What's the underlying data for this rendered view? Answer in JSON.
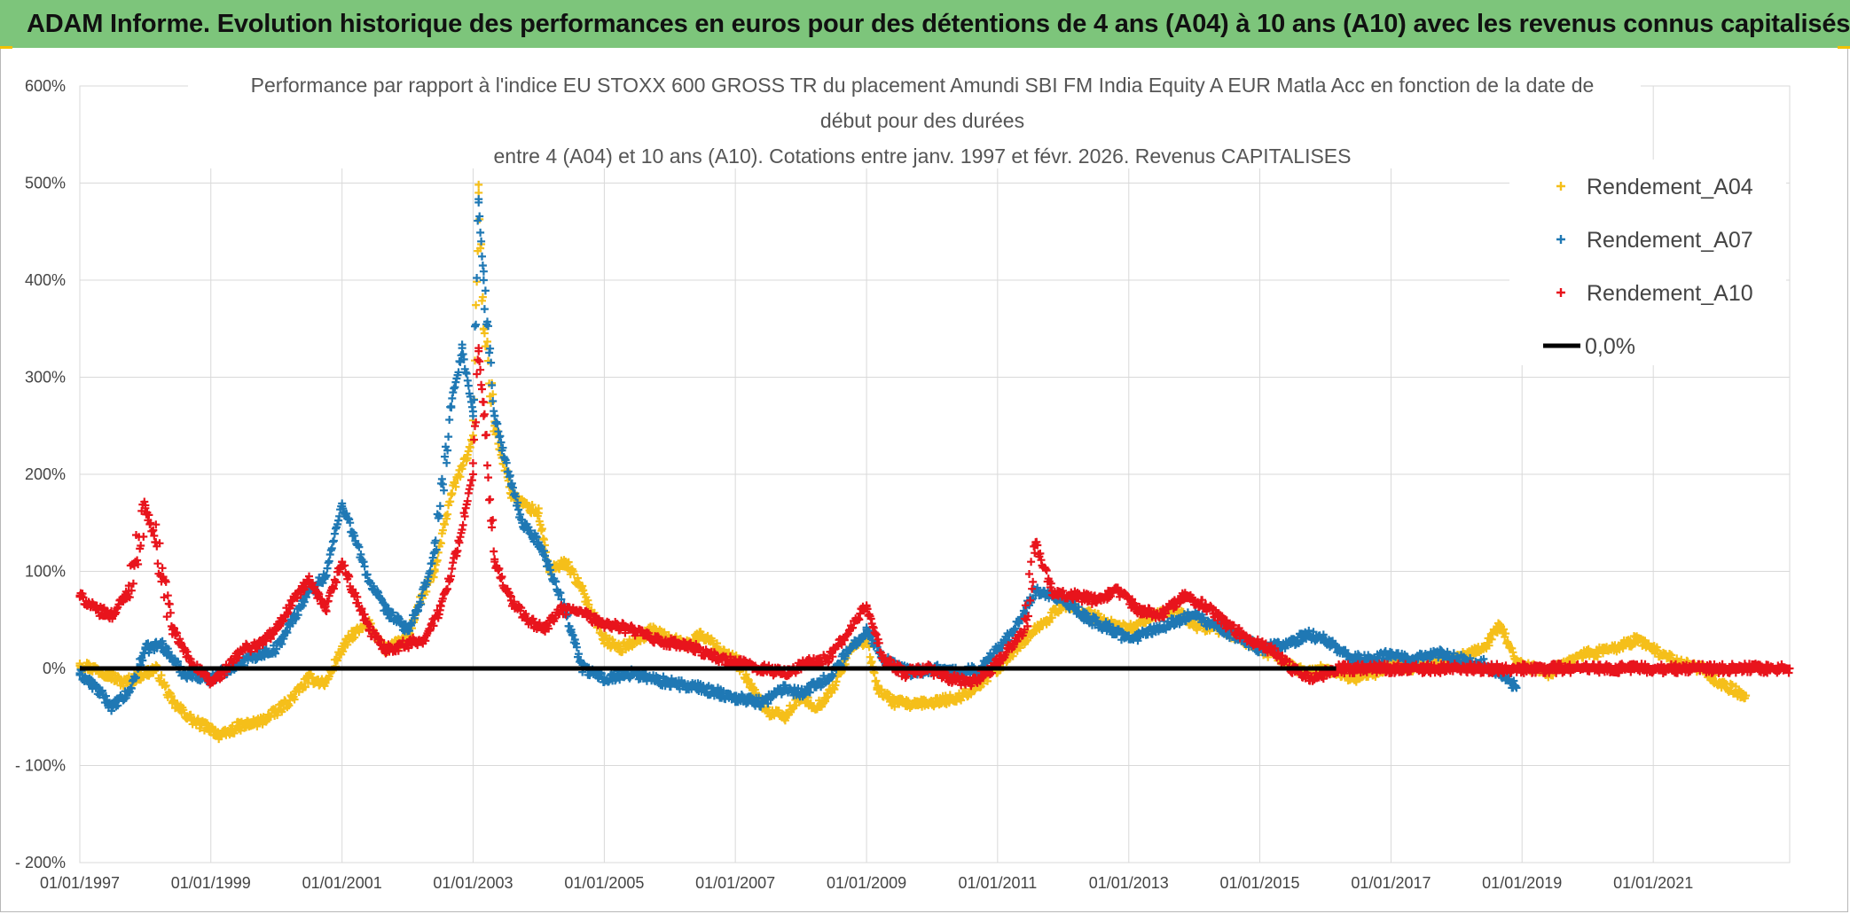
{
  "banner": {
    "text": "ADAM Informe. Evolution historique des performances en euros pour des détentions de 4 ans (A04) à 10 ans (A10) avec les revenus connus capitalisés"
  },
  "colors": {
    "banner_bg": "#7dc57b",
    "A04": "#f5bf1a",
    "A07": "#1f78b4",
    "A10": "#e8141c",
    "zero_line": "#000000",
    "grid": "#d9d9d9"
  },
  "chart_data": {
    "type": "scatter",
    "title_lines": [
      "Performance  par rapport à l'indice EU STOXX 600 GROSS TR  du placement Amundi SBI FM India Equity A EUR Matla Acc en fonction de la date de",
      "début pour des durées",
      "entre 4 (A04) et 10 ans (A10). Cotations entre janv. 1997 et févr. 2026. Revenus CAPITALISES"
    ],
    "xlabel": "",
    "ylabel": "",
    "x_ticks": [
      "01/01/1997",
      "01/01/1999",
      "01/01/2001",
      "01/01/2003",
      "01/01/2005",
      "01/01/2007",
      "01/01/2009",
      "01/01/2011",
      "01/01/2013",
      "01/01/2015",
      "01/01/2017",
      "01/01/2019",
      "01/01/2021"
    ],
    "x_range": [
      "1997-01-01",
      "2023-01-31"
    ],
    "y_ticks": [
      "600%",
      "500%",
      "400%",
      "300%",
      "200%",
      "100%",
      "0%",
      "- 100%",
      "- 200%"
    ],
    "y_range": [
      -200,
      600
    ],
    "grid": true,
    "legend_position": "top-right",
    "series": [
      {
        "name": "Rendement_A04",
        "marker": "plus",
        "points": [
          [
            "1997-01-01",
            5
          ],
          [
            "1997-06-01",
            -5
          ],
          [
            "1997-09-01",
            -15
          ],
          [
            "1998-01-01",
            -5
          ],
          [
            "1998-03-01",
            0
          ],
          [
            "1998-06-01",
            -35
          ],
          [
            "1998-10-01",
            -55
          ],
          [
            "1999-01-01",
            -62
          ],
          [
            "1999-03-01",
            -70
          ],
          [
            "1999-06-01",
            -60
          ],
          [
            "1999-10-01",
            -55
          ],
          [
            "2000-01-01",
            -45
          ],
          [
            "2000-04-01",
            -30
          ],
          [
            "2000-07-01",
            -10
          ],
          [
            "2000-10-01",
            -15
          ],
          [
            "2001-01-01",
            20
          ],
          [
            "2001-03-01",
            35
          ],
          [
            "2001-06-01",
            45
          ],
          [
            "2001-09-01",
            20
          ],
          [
            "2002-01-01",
            30
          ],
          [
            "2002-03-01",
            65
          ],
          [
            "2002-06-01",
            100
          ],
          [
            "2002-09-01",
            180
          ],
          [
            "2002-12-01",
            220
          ],
          [
            "2003-01-01",
            240
          ],
          [
            "2003-02-01",
            490
          ],
          [
            "2003-03-01",
            350
          ],
          [
            "2003-05-01",
            250
          ],
          [
            "2003-08-01",
            180
          ],
          [
            "2003-10-01",
            170
          ],
          [
            "2004-01-01",
            160
          ],
          [
            "2004-03-01",
            100
          ],
          [
            "2004-06-01",
            110
          ],
          [
            "2004-09-01",
            80
          ],
          [
            "2005-01-01",
            30
          ],
          [
            "2005-04-01",
            20
          ],
          [
            "2005-07-01",
            30
          ],
          [
            "2005-10-01",
            40
          ],
          [
            "2006-01-01",
            30
          ],
          [
            "2006-04-01",
            25
          ],
          [
            "2006-07-01",
            35
          ],
          [
            "2006-10-01",
            20
          ],
          [
            "2007-01-01",
            10
          ],
          [
            "2007-04-01",
            -20
          ],
          [
            "2007-07-01",
            -45
          ],
          [
            "2007-10-01",
            -50
          ],
          [
            "2008-01-01",
            -30
          ],
          [
            "2008-04-01",
            -40
          ],
          [
            "2008-07-01",
            -20
          ],
          [
            "2008-10-01",
            20
          ],
          [
            "2009-01-01",
            30
          ],
          [
            "2009-03-01",
            -20
          ],
          [
            "2009-06-01",
            -35
          ],
          [
            "2009-10-01",
            -38
          ],
          [
            "2010-01-01",
            -35
          ],
          [
            "2010-06-01",
            -30
          ],
          [
            "2010-10-01",
            -15
          ],
          [
            "2011-01-01",
            0
          ],
          [
            "2011-06-01",
            30
          ],
          [
            "2011-10-01",
            50
          ],
          [
            "2012-01-01",
            65
          ],
          [
            "2012-06-01",
            55
          ],
          [
            "2012-10-01",
            45
          ],
          [
            "2013-01-01",
            40
          ],
          [
            "2013-06-01",
            55
          ],
          [
            "2013-10-01",
            60
          ],
          [
            "2014-01-01",
            45
          ],
          [
            "2014-06-01",
            40
          ],
          [
            "2014-10-01",
            30
          ],
          [
            "2015-01-01",
            20
          ],
          [
            "2015-06-01",
            5
          ],
          [
            "2015-10-01",
            -5
          ],
          [
            "2016-01-01",
            0
          ],
          [
            "2016-06-01",
            -10
          ],
          [
            "2016-10-01",
            -5
          ],
          [
            "2017-01-01",
            5
          ],
          [
            "2017-06-01",
            0
          ],
          [
            "2017-10-01",
            10
          ],
          [
            "2018-01-01",
            10
          ],
          [
            "2018-06-01",
            20
          ],
          [
            "2018-09-01",
            45
          ],
          [
            "2018-12-01",
            5
          ],
          [
            "2019-06-01",
            -5
          ],
          [
            "2019-10-01",
            10
          ],
          [
            "2020-01-01",
            15
          ],
          [
            "2020-06-01",
            20
          ],
          [
            "2020-10-01",
            30
          ],
          [
            "2021-01-01",
            20
          ],
          [
            "2021-06-01",
            5
          ],
          [
            "2021-10-01",
            0
          ],
          [
            "2022-01-01",
            -15
          ],
          [
            "2022-06-01",
            -28
          ]
        ]
      },
      {
        "name": "Rendement_A07",
        "marker": "plus",
        "points": [
          [
            "1997-01-01",
            -5
          ],
          [
            "1997-04-01",
            -20
          ],
          [
            "1997-07-01",
            -40
          ],
          [
            "1997-10-01",
            -25
          ],
          [
            "1998-01-01",
            20
          ],
          [
            "1998-04-01",
            25
          ],
          [
            "1998-08-01",
            -5
          ],
          [
            "1999-01-01",
            -10
          ],
          [
            "1999-06-01",
            5
          ],
          [
            "1999-10-01",
            15
          ],
          [
            "2000-01-01",
            20
          ],
          [
            "2000-04-01",
            50
          ],
          [
            "2000-07-01",
            80
          ],
          [
            "2000-10-01",
            95
          ],
          [
            "2001-01-01",
            170
          ],
          [
            "2001-03-01",
            140
          ],
          [
            "2001-06-01",
            90
          ],
          [
            "2001-09-01",
            60
          ],
          [
            "2002-01-01",
            40
          ],
          [
            "2002-03-01",
            60
          ],
          [
            "2002-06-01",
            120
          ],
          [
            "2002-09-01",
            270
          ],
          [
            "2002-11-01",
            330
          ],
          [
            "2003-01-01",
            260
          ],
          [
            "2003-02-01",
            480
          ],
          [
            "2003-03-01",
            400
          ],
          [
            "2003-05-01",
            260
          ],
          [
            "2003-08-01",
            190
          ],
          [
            "2003-10-01",
            150
          ],
          [
            "2004-01-01",
            130
          ],
          [
            "2004-04-01",
            90
          ],
          [
            "2004-07-01",
            40
          ],
          [
            "2004-09-01",
            0
          ],
          [
            "2005-01-01",
            -10
          ],
          [
            "2005-06-01",
            -5
          ],
          [
            "2005-10-01",
            -10
          ],
          [
            "2006-01-01",
            -15
          ],
          [
            "2006-06-01",
            -20
          ],
          [
            "2006-10-01",
            -25
          ],
          [
            "2007-01-01",
            -30
          ],
          [
            "2007-06-01",
            -35
          ],
          [
            "2007-10-01",
            -20
          ],
          [
            "2008-01-01",
            -25
          ],
          [
            "2008-06-01",
            -10
          ],
          [
            "2008-10-01",
            20
          ],
          [
            "2009-01-01",
            40
          ],
          [
            "2009-04-01",
            10
          ],
          [
            "2009-07-01",
            0
          ],
          [
            "2009-10-01",
            -5
          ],
          [
            "2010-01-01",
            0
          ],
          [
            "2010-06-01",
            -5
          ],
          [
            "2010-10-01",
            0
          ],
          [
            "2011-01-01",
            20
          ],
          [
            "2011-04-01",
            40
          ],
          [
            "2011-08-01",
            80
          ],
          [
            "2012-01-01",
            70
          ],
          [
            "2012-06-01",
            50
          ],
          [
            "2012-10-01",
            40
          ],
          [
            "2013-01-01",
            30
          ],
          [
            "2013-06-01",
            40
          ],
          [
            "2013-10-01",
            50
          ],
          [
            "2014-01-01",
            55
          ],
          [
            "2014-06-01",
            40
          ],
          [
            "2014-10-01",
            30
          ],
          [
            "2015-01-01",
            20
          ],
          [
            "2015-06-01",
            25
          ],
          [
            "2015-10-01",
            35
          ],
          [
            "2016-01-01",
            30
          ],
          [
            "2016-06-01",
            10
          ],
          [
            "2016-10-01",
            10
          ],
          [
            "2017-01-01",
            15
          ],
          [
            "2017-06-01",
            10
          ],
          [
            "2017-10-01",
            15
          ],
          [
            "2018-01-01",
            10
          ],
          [
            "2018-06-01",
            5
          ],
          [
            "2018-09-01",
            -5
          ],
          [
            "2018-12-01",
            -20
          ]
        ]
      },
      {
        "name": "Rendement_A10",
        "marker": "plus",
        "points": [
          [
            "1997-01-01",
            75
          ],
          [
            "1997-04-01",
            60
          ],
          [
            "1997-07-01",
            55
          ],
          [
            "1997-10-01",
            80
          ],
          [
            "1998-01-01",
            165
          ],
          [
            "1998-03-01",
            130
          ],
          [
            "1998-06-01",
            40
          ],
          [
            "1998-09-01",
            10
          ],
          [
            "1999-01-01",
            -15
          ],
          [
            "1999-04-01",
            0
          ],
          [
            "1999-07-01",
            20
          ],
          [
            "1999-10-01",
            25
          ],
          [
            "2000-01-01",
            40
          ],
          [
            "2000-04-01",
            70
          ],
          [
            "2000-07-01",
            90
          ],
          [
            "2000-10-01",
            60
          ],
          [
            "2001-01-01",
            110
          ],
          [
            "2001-03-01",
            80
          ],
          [
            "2001-06-01",
            40
          ],
          [
            "2001-09-01",
            20
          ],
          [
            "2002-01-01",
            25
          ],
          [
            "2002-04-01",
            30
          ],
          [
            "2002-07-01",
            60
          ],
          [
            "2002-10-01",
            120
          ],
          [
            "2003-01-01",
            200
          ],
          [
            "2003-02-01",
            330
          ],
          [
            "2003-03-01",
            260
          ],
          [
            "2003-05-01",
            110
          ],
          [
            "2003-08-01",
            70
          ],
          [
            "2003-11-01",
            50
          ],
          [
            "2004-02-01",
            40
          ],
          [
            "2004-05-01",
            60
          ],
          [
            "2004-08-01",
            60
          ],
          [
            "2004-11-01",
            50
          ],
          [
            "2005-02-01",
            45
          ],
          [
            "2005-06-01",
            40
          ],
          [
            "2005-10-01",
            30
          ],
          [
            "2006-02-01",
            25
          ],
          [
            "2006-06-01",
            20
          ],
          [
            "2006-10-01",
            10
          ],
          [
            "2007-02-01",
            5
          ],
          [
            "2007-06-01",
            0
          ],
          [
            "2007-10-01",
            -5
          ],
          [
            "2008-02-01",
            5
          ],
          [
            "2008-06-01",
            10
          ],
          [
            "2008-10-01",
            40
          ],
          [
            "2009-01-01",
            65
          ],
          [
            "2009-04-01",
            10
          ],
          [
            "2009-08-01",
            -5
          ],
          [
            "2009-12-01",
            0
          ],
          [
            "2010-04-01",
            -10
          ],
          [
            "2010-08-01",
            -15
          ],
          [
            "2010-12-01",
            0
          ],
          [
            "2011-03-01",
            20
          ],
          [
            "2011-06-01",
            40
          ],
          [
            "2011-08-01",
            130
          ],
          [
            "2011-11-01",
            80
          ],
          [
            "2012-03-01",
            75
          ],
          [
            "2012-07-01",
            70
          ],
          [
            "2012-11-01",
            80
          ],
          [
            "2013-03-01",
            60
          ],
          [
            "2013-07-01",
            55
          ],
          [
            "2013-11-01",
            75
          ],
          [
            "2014-03-01",
            65
          ],
          [
            "2014-07-01",
            45
          ],
          [
            "2014-11-01",
            30
          ],
          [
            "2015-03-01",
            20
          ],
          [
            "2015-07-01",
            0
          ],
          [
            "2015-11-01",
            -10
          ],
          [
            "2016-03-01",
            0
          ],
          [
            "2016-07-01",
            0
          ],
          [
            "2017-01-01",
            0
          ],
          [
            "2018-01-01",
            0
          ],
          [
            "2019-01-01",
            0
          ],
          [
            "2020-01-01",
            0
          ],
          [
            "2021-01-01",
            0
          ],
          [
            "2022-01-01",
            0
          ],
          [
            "2023-01-31",
            0
          ]
        ]
      }
    ],
    "reference_line": {
      "name": "0,0%",
      "y": 0
    }
  }
}
